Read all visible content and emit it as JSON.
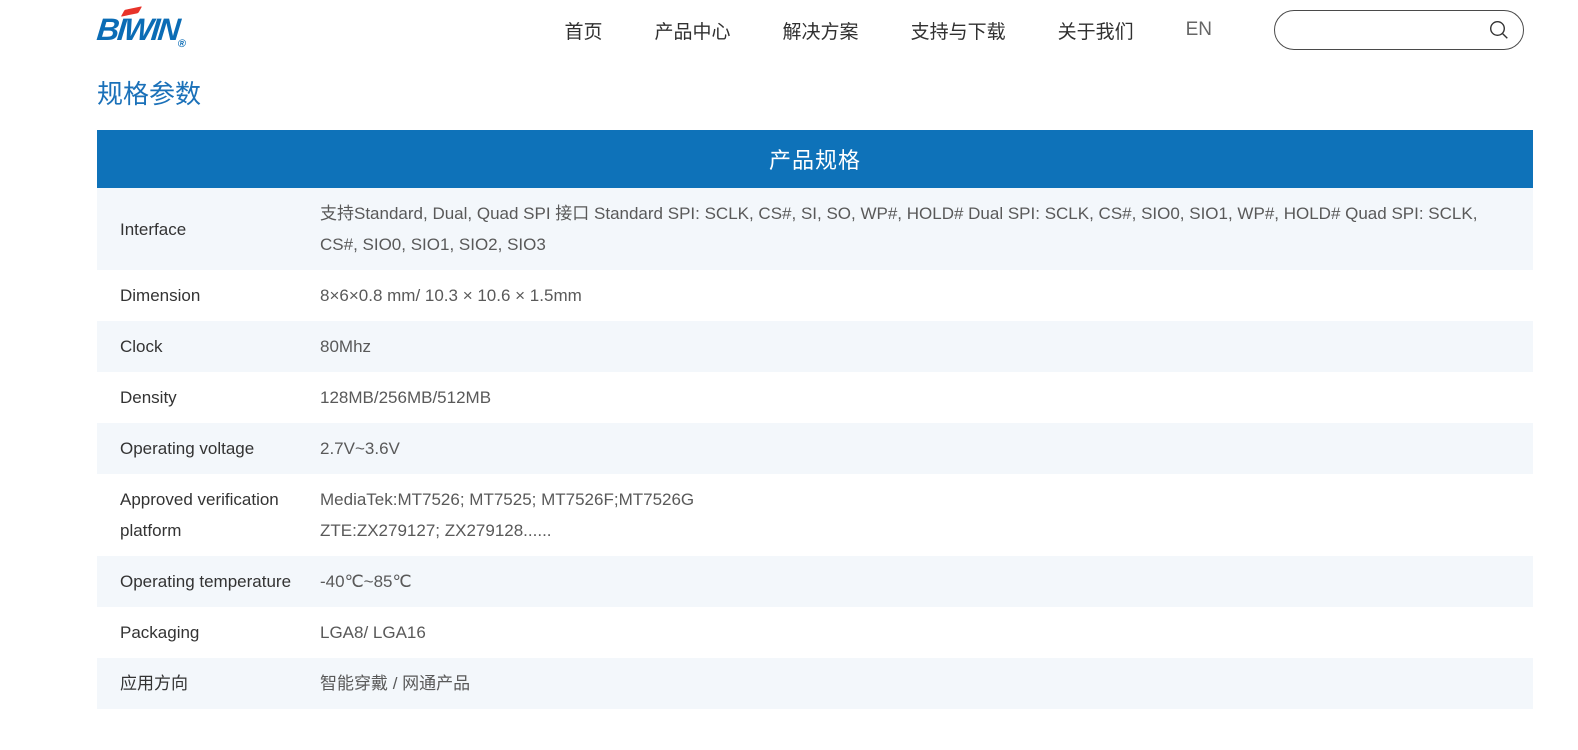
{
  "brand": {
    "logo_text": "BIWIN",
    "registered_mark": "®",
    "logo_color": "#0b6cb5",
    "logo_accent_color": "#e8332a"
  },
  "nav": {
    "items": [
      {
        "key": "home",
        "label": "首页"
      },
      {
        "key": "products",
        "label": "产品中心"
      },
      {
        "key": "solutions",
        "label": "解决方案"
      },
      {
        "key": "support",
        "label": "支持与下载"
      },
      {
        "key": "about",
        "label": "关于我们"
      },
      {
        "key": "en",
        "label": "EN"
      }
    ]
  },
  "search": {
    "value": "",
    "placeholder": "",
    "icon": "magnifier"
  },
  "page": {
    "title": "规格参数"
  },
  "spec_table": {
    "header": "产品规格",
    "header_color": "#0e72b9",
    "alt_row_color": "#f3f7fb",
    "rows": [
      {
        "label": "Interface",
        "value": "支持Standard, Dual, Quad SPI 接口 Standard SPI: SCLK, CS#, SI, SO, WP#, HOLD# Dual SPI: SCLK, CS#, SIO0, SIO1, WP#, HOLD# Quad SPI: SCLK, CS#, SIO0, SIO1, SIO2, SIO3"
      },
      {
        "label": "Dimension",
        "value": "8×6×0.8 mm/ 10.3 × 10.6 × 1.5mm"
      },
      {
        "label": "Clock",
        "value": "80Mhz"
      },
      {
        "label": "Density",
        "value": "128MB/256MB/512MB"
      },
      {
        "label": "Operating voltage",
        "value": "2.7V~3.6V"
      },
      {
        "label": "Approved verification platform",
        "value": "MediaTek:MT7526; MT7525; MT7526F;MT7526G\nZTE:ZX279127; ZX279128......"
      },
      {
        "label": "Operating temperature",
        "value": "-40℃~85℃"
      },
      {
        "label": "Packaging",
        "value": "LGA8/ LGA16"
      },
      {
        "label": "应用方向",
        "value": "智能穿戴 / 网通产品"
      }
    ]
  }
}
